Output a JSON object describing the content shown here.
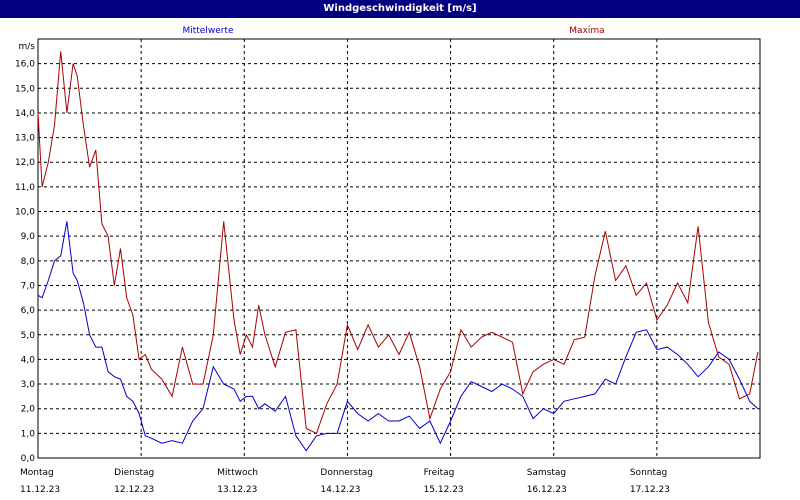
{
  "title": "Windgeschwindigkeit [m/s]",
  "colors": {
    "title_bg": "#000080",
    "mean": "#0000cc",
    "max": "#aa0000"
  },
  "chart_data": {
    "type": "line",
    "title": "Windgeschwindigkeit [m/s]",
    "ylabel": "m/s",
    "ylim": [
      0,
      17
    ],
    "yticks": [
      "0,0",
      "1,0",
      "2,0",
      "3,0",
      "4,0",
      "5,0",
      "6,0",
      "7,0",
      "8,0",
      "9,0",
      "10,0",
      "11,0",
      "12,0",
      "13,0",
      "14,0",
      "15,0",
      "16,0"
    ],
    "grid": true,
    "xlim": [
      0,
      7
    ],
    "xticks": [
      {
        "day": "Montag",
        "date": "11.12.23"
      },
      {
        "day": "Dienstag",
        "date": "12.12.23"
      },
      {
        "day": "Mittwoch",
        "date": "13.12.23"
      },
      {
        "day": "Donnerstag",
        "date": "14.12.23"
      },
      {
        "day": "Freitag",
        "date": "15.12.23"
      },
      {
        "day": "Samstag",
        "date": "16.12.23"
      },
      {
        "day": "Sonntag",
        "date": "17.12.23"
      }
    ],
    "legend": "top",
    "series": [
      {
        "name": "Mittelwerte",
        "color": "#0000cc",
        "x": [
          0,
          0.04,
          0.1,
          0.16,
          0.22,
          0.28,
          0.34,
          0.38,
          0.44,
          0.5,
          0.56,
          0.62,
          0.68,
          0.74,
          0.8,
          0.86,
          0.92,
          0.98,
          1.04,
          1.1,
          1.2,
          1.3,
          1.4,
          1.5,
          1.6,
          1.7,
          1.8,
          1.9,
          1.96,
          2.02,
          2.08,
          2.14,
          2.2,
          2.3,
          2.4,
          2.5,
          2.6,
          2.7,
          2.8,
          2.9,
          3.0,
          3.1,
          3.2,
          3.3,
          3.4,
          3.5,
          3.6,
          3.7,
          3.8,
          3.9,
          4.0,
          4.1,
          4.2,
          4.3,
          4.4,
          4.5,
          4.6,
          4.7,
          4.8,
          4.9,
          5.0,
          5.1,
          5.2,
          5.3,
          5.4,
          5.5,
          5.6,
          5.7,
          5.8,
          5.9,
          6.0,
          6.1,
          6.2,
          6.3,
          6.4,
          6.5,
          6.6,
          6.7,
          6.8,
          6.9,
          6.98
        ],
        "values": [
          6.6,
          6.5,
          7.2,
          8.0,
          8.2,
          9.6,
          7.5,
          7.2,
          6.3,
          5.0,
          4.5,
          4.5,
          3.5,
          3.3,
          3.2,
          2.5,
          2.3,
          1.8,
          0.9,
          0.8,
          0.6,
          0.7,
          0.6,
          1.5,
          2.0,
          3.7,
          3.0,
          2.8,
          2.3,
          2.5,
          2.5,
          2.0,
          2.2,
          1.9,
          2.5,
          0.9,
          0.3,
          0.9,
          1.0,
          1.0,
          2.3,
          1.8,
          1.5,
          1.8,
          1.5,
          1.5,
          1.7,
          1.2,
          1.5,
          0.6,
          1.5,
          2.5,
          3.1,
          2.9,
          2.7,
          3.0,
          2.8,
          2.5,
          1.6,
          2.0,
          1.8,
          2.3,
          2.4,
          2.5,
          2.6,
          3.2,
          3.0,
          4.1,
          5.1,
          5.2,
          4.4,
          4.5,
          4.2,
          3.8,
          3.3,
          3.7,
          4.3,
          4.0,
          3.2,
          2.3,
          2.0
        ]
      },
      {
        "name": "Maxima",
        "color": "#aa0000",
        "x": [
          0,
          0.04,
          0.1,
          0.16,
          0.22,
          0.28,
          0.34,
          0.38,
          0.44,
          0.5,
          0.56,
          0.62,
          0.68,
          0.74,
          0.8,
          0.86,
          0.92,
          0.98,
          1.04,
          1.1,
          1.2,
          1.3,
          1.4,
          1.5,
          1.6,
          1.7,
          1.8,
          1.9,
          1.96,
          2.02,
          2.08,
          2.14,
          2.2,
          2.3,
          2.4,
          2.5,
          2.6,
          2.7,
          2.8,
          2.9,
          3.0,
          3.1,
          3.2,
          3.3,
          3.4,
          3.5,
          3.6,
          3.7,
          3.8,
          3.9,
          4.0,
          4.1,
          4.2,
          4.3,
          4.4,
          4.5,
          4.6,
          4.7,
          4.8,
          4.9,
          5.0,
          5.1,
          5.2,
          5.3,
          5.4,
          5.5,
          5.6,
          5.7,
          5.8,
          5.9,
          6.0,
          6.1,
          6.2,
          6.3,
          6.4,
          6.5,
          6.6,
          6.7,
          6.8,
          6.9,
          6.98
        ],
        "values": [
          14.0,
          11.0,
          12.0,
          13.5,
          16.5,
          14.0,
          16.0,
          15.5,
          13.5,
          11.8,
          12.5,
          9.5,
          9.0,
          7.0,
          8.5,
          6.5,
          5.8,
          4.0,
          4.2,
          3.6,
          3.2,
          2.5,
          4.5,
          3.0,
          3.0,
          5.0,
          9.6,
          5.6,
          4.2,
          5.0,
          4.5,
          6.2,
          5.0,
          3.7,
          5.1,
          5.2,
          1.2,
          1.0,
          2.2,
          3.0,
          5.4,
          4.4,
          5.4,
          4.5,
          5.0,
          4.2,
          5.1,
          3.7,
          1.6,
          2.8,
          3.5,
          5.2,
          4.5,
          4.9,
          5.1,
          4.9,
          4.7,
          2.6,
          3.5,
          3.8,
          4.0,
          3.8,
          4.8,
          4.9,
          7.4,
          9.2,
          7.2,
          7.8,
          6.6,
          7.1,
          5.6,
          6.2,
          7.1,
          6.3,
          9.4,
          5.5,
          4.1,
          3.8,
          2.4,
          2.6,
          4.3
        ]
      }
    ]
  }
}
